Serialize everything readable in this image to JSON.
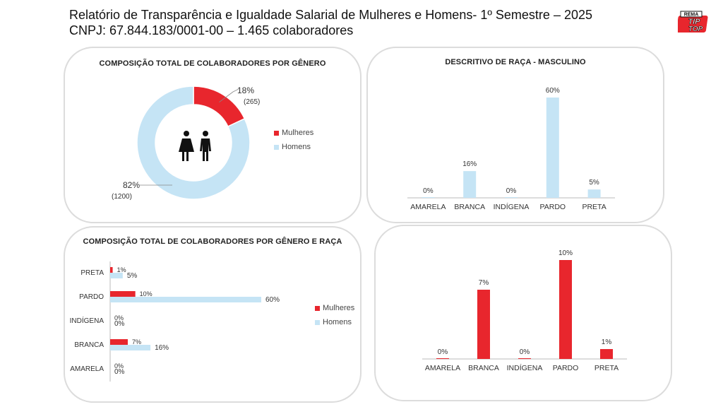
{
  "header": {
    "line1": "Relatório de Transparência e Igualdade Salarial de Mulheres e Homens- 1º Semestre – 2025",
    "line2": "CNPJ: 67.844.183/0001-00 – 1.465 colaboradores"
  },
  "logo": {
    "top": "REMA",
    "mid": "TIP",
    "bottom": "TOP"
  },
  "colors": {
    "women": "#e8262d",
    "men": "#c5e4f5"
  },
  "chart_data": [
    {
      "type": "pie",
      "title": "COMPOSIÇÃO TOTAL DE COLABORADORES POR GÊNERO",
      "labels": [
        "Mulheres",
        "Homens"
      ],
      "values": [
        18,
        82
      ],
      "counts": [
        "(265)",
        "(1200)"
      ],
      "value_labels": [
        "18%",
        "82%"
      ],
      "legend": [
        "Mulheres",
        "Homens"
      ],
      "legend_position": "right",
      "center_icon": "people-icon"
    },
    {
      "type": "bar",
      "title": "DESCRITIVO DE RAÇA - MASCULINO",
      "categories": [
        "AMARELA",
        "BRANCA",
        "INDÍGENA",
        "PARDO",
        "PRETA"
      ],
      "values": [
        0,
        16,
        0,
        60,
        5
      ],
      "value_labels": [
        "0%",
        "16%",
        "0%",
        "60%",
        "5%"
      ],
      "color": "#c5e4f5"
    },
    {
      "type": "bar",
      "orientation": "horizontal",
      "title": "COMPOSIÇÃO TOTAL DE COLABORADORES POR GÊNERO E RAÇA",
      "categories": [
        "PRETA",
        "PARDO",
        "INDÍGENA",
        "BRANCA",
        "AMARELA"
      ],
      "series": [
        {
          "name": "Mulheres",
          "values": [
            1,
            10,
            0,
            7,
            0
          ],
          "value_labels": [
            "1%",
            "10%",
            "0%",
            "7%",
            "0%"
          ]
        },
        {
          "name": "Homens",
          "values": [
            5,
            60,
            0,
            16,
            0
          ],
          "value_labels": [
            "5%",
            "60%",
            "0%",
            "16%",
            "0%"
          ]
        }
      ],
      "legend_position": "right"
    },
    {
      "type": "bar",
      "title": "",
      "categories": [
        "AMARELA",
        "BRANCA",
        "INDÍGENA",
        "PARDO",
        "PRETA"
      ],
      "values": [
        0,
        7,
        0,
        10,
        1
      ],
      "value_labels": [
        "0%",
        "7%",
        "0%",
        "10%",
        "1%"
      ],
      "color": "#e8262d"
    }
  ]
}
